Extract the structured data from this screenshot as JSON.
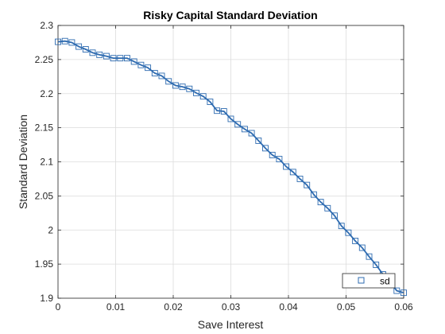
{
  "chart_data": {
    "type": "line",
    "title": "Risky Capital Standard Deviation",
    "xlabel": "Save Interest",
    "ylabel": "Standard Deviation",
    "xlim": [
      0,
      0.06
    ],
    "ylim": [
      1.9,
      2.3
    ],
    "xticks": [
      0,
      0.01,
      0.02,
      0.03,
      0.04,
      0.05,
      0.06
    ],
    "xtick_labels": [
      "0",
      "0.01",
      "0.02",
      "0.03",
      "0.04",
      "0.05",
      "0.06"
    ],
    "yticks": [
      1.9,
      1.95,
      2.0,
      2.05,
      2.1,
      2.15,
      2.2,
      2.25,
      2.3
    ],
    "ytick_labels": [
      "1.9",
      "1.95",
      "2",
      "2.05",
      "2.1",
      "2.15",
      "2.2",
      "2.25",
      "2.3"
    ],
    "grid": true,
    "legend_position": "bottom-right",
    "series": [
      {
        "name": "sd",
        "color": "#2e6bb0",
        "marker": "square",
        "x": [
          0,
          0.0012,
          0.0024,
          0.0036,
          0.0048,
          0.006,
          0.0072,
          0.0084,
          0.0096,
          0.0108,
          0.012,
          0.0132,
          0.0144,
          0.0156,
          0.0168,
          0.018,
          0.0192,
          0.0204,
          0.0216,
          0.0228,
          0.024,
          0.0252,
          0.0264,
          0.0276,
          0.0288,
          0.03,
          0.0312,
          0.0324,
          0.0336,
          0.0348,
          0.036,
          0.0372,
          0.0384,
          0.0396,
          0.0408,
          0.042,
          0.0432,
          0.0444,
          0.0456,
          0.0468,
          0.048,
          0.0492,
          0.0504,
          0.0516,
          0.0528,
          0.054,
          0.0552,
          0.0564,
          0.0576,
          0.0588,
          0.06
        ],
        "y": [
          2.276,
          2.277,
          2.275,
          2.269,
          2.265,
          2.26,
          2.257,
          2.255,
          2.252,
          2.252,
          2.252,
          2.247,
          2.242,
          2.238,
          2.23,
          2.226,
          2.218,
          2.212,
          2.21,
          2.207,
          2.201,
          2.196,
          2.188,
          2.175,
          2.174,
          2.163,
          2.155,
          2.148,
          2.142,
          2.131,
          2.12,
          2.11,
          2.104,
          2.093,
          2.085,
          2.075,
          2.066,
          2.052,
          2.041,
          2.032,
          2.021,
          2.006,
          1.996,
          1.984,
          1.974,
          1.961,
          1.949,
          1.935,
          1.924,
          1.911,
          1.908
        ]
      }
    ]
  }
}
